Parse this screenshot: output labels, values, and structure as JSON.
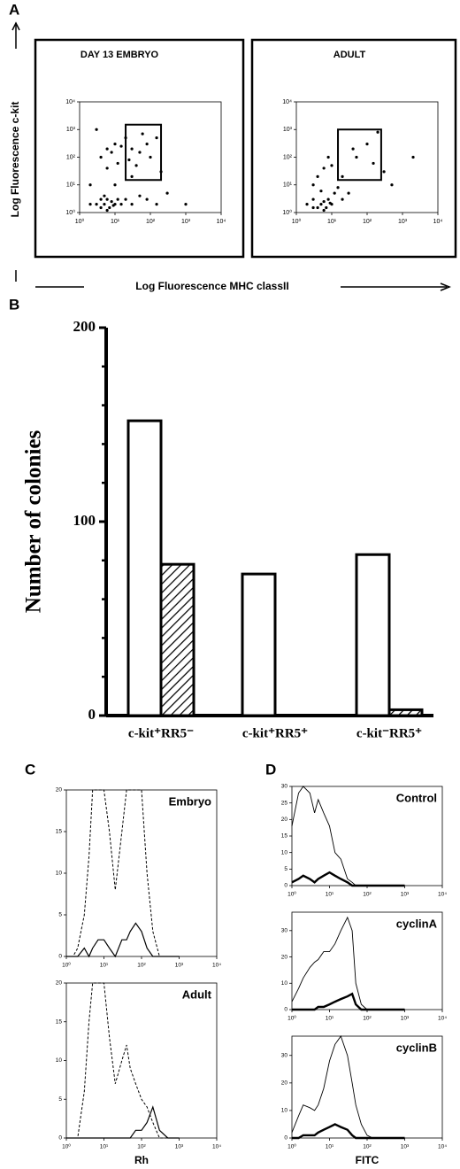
{
  "chart_data": [
    {
      "type": "scatter",
      "panel": "A",
      "title": "DAY 13 EMBRYO",
      "ylabel": "Log Fluorescence c-kit",
      "xlabel": "Log Fluorescence MHC classII",
      "xlog": true,
      "ylog": true,
      "xlim": [
        1,
        10000
      ],
      "ylim": [
        1,
        10000
      ],
      "xticks": [
        {
          "value": 1,
          "label": "10⁰"
        },
        {
          "value": 10,
          "label": "10¹"
        },
        {
          "value": 100,
          "label": "10²"
        },
        {
          "value": 1000,
          "label": "10³"
        },
        {
          "value": 10000,
          "label": "10⁴"
        }
      ],
      "yticks": [
        {
          "value": 1,
          "label": "10⁰"
        },
        {
          "value": 10,
          "label": "10¹"
        },
        {
          "value": 100,
          "label": "10²"
        },
        {
          "value": 1000,
          "label": "10³"
        },
        {
          "value": 10000,
          "label": "10⁴"
        }
      ],
      "gate": {
        "x": [
          20,
          200
        ],
        "y": [
          15,
          1500
        ]
      },
      "x": [
        3,
        4,
        5,
        6,
        7,
        8,
        9,
        10,
        12,
        5,
        6,
        4,
        15,
        20,
        30,
        50,
        80,
        150,
        300,
        2,
        4,
        6,
        8,
        10,
        15,
        20,
        30,
        50,
        80,
        100,
        40,
        25,
        12,
        6,
        150,
        3,
        200,
        60,
        2,
        1000,
        10,
        30
      ],
      "y": [
        2,
        1.5,
        2,
        3,
        1.5,
        2.5,
        1.8,
        2,
        3,
        4,
        1.2,
        3,
        2,
        3,
        2,
        4,
        3,
        2,
        5,
        2,
        100,
        200,
        150,
        300,
        250,
        500,
        200,
        150,
        300,
        100,
        50,
        80,
        60,
        40,
        500,
        1000,
        30,
        700,
        10,
        2,
        10,
        20
      ]
    },
    {
      "type": "scatter",
      "title": "ADULT",
      "xlog": true,
      "ylog": true,
      "xlim": [
        1,
        10000
      ],
      "ylim": [
        1,
        10000
      ],
      "xticks": [
        {
          "value": 1,
          "label": "10⁰"
        },
        {
          "value": 10,
          "label": "10¹"
        },
        {
          "value": 100,
          "label": "10²"
        },
        {
          "value": 1000,
          "label": "10³"
        },
        {
          "value": 10000,
          "label": "10⁴"
        }
      ],
      "yticks": [
        {
          "value": 1,
          "label": "10⁰"
        },
        {
          "value": 10,
          "label": "10¹"
        },
        {
          "value": 100,
          "label": "10²"
        },
        {
          "value": 1000,
          "label": "10³"
        },
        {
          "value": 10000,
          "label": "10⁴"
        }
      ],
      "gate": {
        "x": [
          15,
          250
        ],
        "y": [
          15,
          1000
        ]
      },
      "x": [
        2,
        3,
        4,
        5,
        6,
        7,
        8,
        10,
        12,
        5,
        3,
        4,
        6,
        8,
        10,
        15,
        20,
        30,
        50,
        100,
        200,
        300,
        500,
        2000,
        40,
        150,
        6,
        9,
        3,
        20
      ],
      "y": [
        2,
        3,
        1.5,
        2,
        2.5,
        1.5,
        3,
        2,
        5,
        6,
        10,
        20,
        40,
        100,
        50,
        8,
        20,
        5,
        100,
        300,
        800,
        30,
        10,
        100,
        200,
        60,
        1.2,
        2.2,
        1.5,
        3
      ]
    },
    {
      "type": "bar",
      "panel": "B",
      "ylabel": "Number of colonies",
      "ylim": [
        0,
        200
      ],
      "yticks": [
        0,
        100,
        200
      ],
      "yminorticks": [
        20,
        40,
        60,
        80,
        120,
        140,
        160,
        180
      ],
      "categories": [
        "c-kit⁺RR5⁻",
        "c-kit⁺RR5⁺",
        "c-kit⁻RR5⁺"
      ],
      "series": [
        {
          "fill": "white",
          "values": [
            152,
            73,
            83
          ]
        },
        {
          "fill": "hatch",
          "values": [
            78,
            0,
            3
          ]
        }
      ]
    },
    {
      "type": "line",
      "panel": "C",
      "title": "Embryo",
      "xlog": true,
      "xlim": [
        1,
        10000
      ],
      "ylim": [
        0,
        20
      ],
      "xticks": [
        {
          "value": 1,
          "label": "10⁰"
        },
        {
          "value": 10,
          "label": "10¹"
        },
        {
          "value": 100,
          "label": "10²"
        },
        {
          "value": 1000,
          "label": "10³"
        },
        {
          "value": 10000,
          "label": "10⁴"
        }
      ],
      "yticks": [
        0,
        5,
        10,
        15,
        20
      ],
      "x": [
        1,
        1.5,
        2,
        3,
        4,
        5,
        7,
        10,
        14,
        20,
        30,
        40,
        50,
        70,
        100,
        140,
        200,
        300,
        500,
        1000
      ],
      "series": [
        {
          "style": "dashed",
          "values": [
            0,
            0,
            1,
            5,
            12,
            20,
            20,
            20,
            15,
            8,
            15,
            20,
            20,
            20,
            20,
            10,
            3,
            0,
            0,
            0
          ]
        },
        {
          "style": "solid",
          "values": [
            0,
            0,
            0,
            1,
            0,
            1,
            2,
            2,
            1,
            0,
            2,
            2,
            3,
            4,
            3,
            1,
            0,
            0,
            0,
            0
          ]
        }
      ]
    },
    {
      "type": "line",
      "title": "Adult",
      "xlabel": "Rh",
      "xlog": true,
      "xlim": [
        1,
        10000
      ],
      "ylim": [
        0,
        20
      ],
      "xticks": [
        {
          "value": 1,
          "label": "10⁰"
        },
        {
          "value": 10,
          "label": "10¹"
        },
        {
          "value": 100,
          "label": "10²"
        },
        {
          "value": 1000,
          "label": "10³"
        },
        {
          "value": 10000,
          "label": "10⁴"
        }
      ],
      "yticks": [
        0,
        5,
        10,
        15,
        20
      ],
      "x": [
        1,
        1.5,
        2,
        3,
        4,
        5,
        7,
        10,
        14,
        20,
        30,
        40,
        50,
        70,
        100,
        140,
        200,
        300,
        500,
        1000
      ],
      "series": [
        {
          "style": "dashed",
          "values": [
            0,
            0,
            0,
            6,
            15,
            20,
            20,
            20,
            13,
            7,
            10,
            12,
            9,
            7,
            5,
            4,
            2,
            0,
            0,
            0
          ]
        },
        {
          "style": "solid",
          "values": [
            0,
            0,
            0,
            0,
            0,
            0,
            0,
            0,
            0,
            0,
            0,
            0,
            0,
            1,
            1,
            2,
            4,
            1,
            0,
            0
          ]
        }
      ]
    },
    {
      "type": "line",
      "panel": "D",
      "title": "Control",
      "xlog": true,
      "xlim": [
        1,
        10000
      ],
      "ylim": [
        0,
        30
      ],
      "xticks": [
        {
          "value": 1,
          "label": "10⁰"
        },
        {
          "value": 10,
          "label": "10¹"
        },
        {
          "value": 100,
          "label": "10²"
        },
        {
          "value": 1000,
          "label": "10³"
        },
        {
          "value": 10000,
          "label": "10⁴"
        }
      ],
      "yticks": [
        0,
        5,
        10,
        15,
        20,
        25,
        30
      ],
      "x": [
        1,
        1.5,
        2,
        3,
        4,
        5,
        7,
        10,
        14,
        20,
        30,
        40,
        50,
        70,
        100,
        140,
        200,
        300,
        500,
        1000
      ],
      "series": [
        {
          "style": "thin",
          "values": [
            18,
            28,
            30,
            28,
            22,
            26,
            22,
            18,
            10,
            8,
            2,
            1,
            0,
            0,
            0,
            0,
            0,
            0,
            0,
            0
          ]
        },
        {
          "style": "thick",
          "values": [
            1,
            2,
            3,
            2,
            1,
            2,
            3,
            4,
            3,
            2,
            1,
            0,
            0,
            0,
            0,
            0,
            0,
            0,
            0,
            0
          ]
        }
      ]
    },
    {
      "type": "line",
      "title": "cyclinA",
      "xlog": true,
      "xlim": [
        1,
        10000
      ],
      "ylim": [
        0,
        37
      ],
      "xticks": [
        {
          "value": 1,
          "label": "10⁰"
        },
        {
          "value": 10,
          "label": "10¹"
        },
        {
          "value": 100,
          "label": "10²"
        },
        {
          "value": 1000,
          "label": "10³"
        },
        {
          "value": 10000,
          "label": "10⁴"
        }
      ],
      "yticks": [
        0,
        10,
        20,
        30
      ],
      "x": [
        1,
        1.5,
        2,
        3,
        4,
        5,
        7,
        10,
        14,
        20,
        30,
        40,
        50,
        70,
        100,
        140,
        200,
        300,
        500,
        1000
      ],
      "series": [
        {
          "style": "thin",
          "values": [
            3,
            8,
            12,
            16,
            18,
            19,
            22,
            22,
            25,
            30,
            35,
            30,
            10,
            2,
            0,
            0,
            0,
            0,
            0,
            0
          ]
        },
        {
          "style": "thick",
          "values": [
            0,
            0,
            0,
            0,
            0,
            1,
            1,
            2,
            3,
            4,
            5,
            6,
            2,
            0,
            0,
            0,
            0,
            0,
            0,
            0
          ]
        }
      ]
    },
    {
      "type": "line",
      "title": "cyclinB",
      "xlabel": "FITC",
      "xlog": true,
      "xlim": [
        1,
        10000
      ],
      "ylim": [
        0,
        37
      ],
      "xticks": [
        {
          "value": 1,
          "label": "10⁰"
        },
        {
          "value": 10,
          "label": "10¹"
        },
        {
          "value": 100,
          "label": "10²"
        },
        {
          "value": 1000,
          "label": "10³"
        },
        {
          "value": 10000,
          "label": "10⁴"
        }
      ],
      "yticks": [
        0,
        10,
        20,
        30
      ],
      "x": [
        1,
        1.5,
        2,
        3,
        4,
        5,
        7,
        10,
        14,
        20,
        30,
        40,
        50,
        70,
        100,
        140,
        200,
        300,
        500,
        1000
      ],
      "series": [
        {
          "style": "thin",
          "values": [
            2,
            8,
            12,
            11,
            10,
            12,
            18,
            28,
            34,
            37,
            30,
            20,
            12,
            5,
            1,
            0,
            0,
            0,
            0,
            0
          ]
        },
        {
          "style": "thick",
          "values": [
            0,
            0,
            1,
            1,
            1,
            2,
            3,
            4,
            5,
            4,
            3,
            1,
            0,
            0,
            0,
            0,
            0,
            0,
            0,
            0
          ]
        }
      ]
    }
  ]
}
